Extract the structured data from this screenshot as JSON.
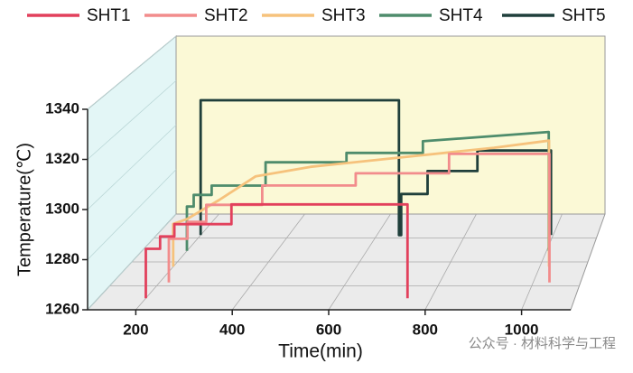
{
  "chart_data": {
    "type": "line3d",
    "xlabel": "Time(min)",
    "ylabel": "Temperature(℃)",
    "xlim": [
      100,
      1100
    ],
    "xticks": [
      200,
      400,
      600,
      800,
      1000
    ],
    "ylim": [
      1260,
      1340
    ],
    "yticks": [
      1260,
      1280,
      1300,
      1320,
      1340
    ],
    "grid": true,
    "legend": "top",
    "watermark": "公众号 · 材料科学与工程",
    "series": [
      {
        "name": "SHT1",
        "color": "#e2405c",
        "x": [
          200,
          200,
          230,
          230,
          260,
          260,
          380,
          380,
          750,
          750
        ],
        "values": [
          1260,
          1280,
          1280,
          1285,
          1285,
          1290,
          1290,
          1298,
          1298,
          1260
        ]
      },
      {
        "name": "SHT2",
        "color": "#f28c8c",
        "x": [
          220,
          220,
          260,
          260,
          300,
          300,
          420,
          420,
          620,
          620,
          820,
          820,
          1035,
          1035
        ],
        "values": [
          1260,
          1278,
          1278,
          1285,
          1285,
          1292,
          1292,
          1300,
          1300,
          1305,
          1305,
          1313,
          1313,
          1260
        ]
      },
      {
        "name": "SHT3",
        "color": "#f6c27c",
        "x": [
          200,
          200,
          230,
          300,
          380,
          500,
          700,
          900,
          1020,
          1020
        ],
        "values": [
          1260,
          1278,
          1280,
          1288,
          1298,
          1302,
          1306,
          1310,
          1313,
          1260
        ]
      },
      {
        "name": "SHT4",
        "color": "#4e8c6c",
        "x": [
          200,
          200,
          215,
          215,
          255,
          255,
          375,
          375,
          555,
          555,
          725,
          725,
          1005,
          1005
        ],
        "values": [
          1260,
          1279,
          1279,
          1284,
          1284,
          1288,
          1288,
          1298,
          1298,
          1302,
          1302,
          1307,
          1311,
          1260
        ]
      },
      {
        "name": "SHT5",
        "color": "#1f3f3b",
        "x": [
          200,
          200,
          650,
          650,
          655,
          655,
          715,
          715,
          828,
          828,
          995,
          995
        ],
        "values": [
          1260,
          1319,
          1319,
          1260,
          1260,
          1278,
          1278,
          1288,
          1288,
          1297,
          1297,
          1260
        ]
      }
    ]
  }
}
